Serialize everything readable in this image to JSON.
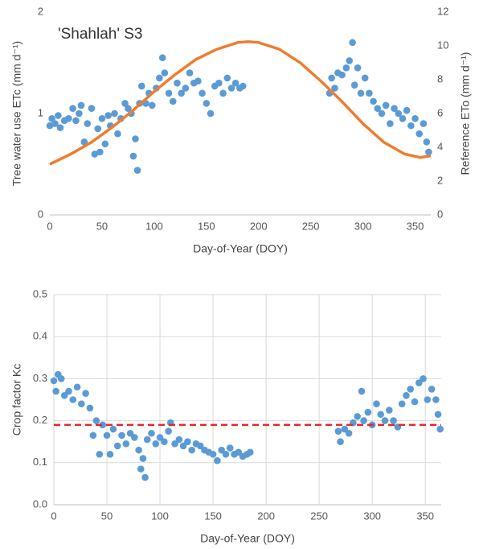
{
  "chart_data": [
    {
      "type": "scatter",
      "annotation": "'Shahlah' S3",
      "x_label": "Day-of-Year (DOY)",
      "y_label": "Tree water use ETc (mm d⁻¹)",
      "y2_label": "Reference ETo (mm d⁻¹)",
      "xlim": [
        0,
        365
      ],
      "xticks": [
        0,
        50,
        100,
        150,
        200,
        250,
        300,
        350
      ],
      "ylim": [
        0,
        2
      ],
      "yticks": [
        0,
        1,
        2
      ],
      "y2lim": [
        0,
        12
      ],
      "y2ticks": [
        0,
        2,
        4,
        6,
        8,
        10,
        12
      ],
      "grid": false,
      "series": [
        {
          "type": "scatter",
          "color": "#5b9bd5",
          "x": [
            0,
            2,
            5,
            8,
            10,
            14,
            18,
            22,
            25,
            28,
            30,
            33,
            36,
            40,
            43,
            46,
            48,
            50,
            53,
            56,
            58,
            62,
            65,
            68,
            72,
            75,
            78,
            80,
            82,
            84,
            86,
            88,
            92,
            95,
            98,
            102,
            105,
            108,
            110,
            114,
            118,
            122,
            126,
            130,
            134,
            138,
            142,
            146,
            150,
            154,
            158,
            162,
            166,
            170,
            174,
            178,
            182,
            185,
            268,
            270,
            273,
            276,
            280,
            284,
            287,
            290,
            292,
            295,
            298,
            302,
            306,
            310,
            314,
            318,
            322,
            326,
            330,
            334,
            338,
            342,
            346,
            350,
            354,
            358,
            361,
            363
          ],
          "values": [
            0.88,
            0.95,
            0.9,
            0.98,
            0.86,
            0.93,
            0.95,
            1.05,
            0.93,
            1.0,
            1.08,
            0.72,
            0.9,
            1.05,
            0.6,
            0.85,
            0.62,
            0.95,
            0.7,
            0.98,
            0.88,
            1.0,
            0.8,
            0.95,
            1.1,
            1.05,
            1.0,
            0.58,
            0.75,
            0.44,
            1.1,
            1.27,
            1.1,
            1.2,
            1.08,
            1.25,
            1.35,
            1.55,
            1.4,
            1.2,
            1.12,
            1.3,
            1.2,
            1.25,
            1.4,
            1.3,
            1.32,
            1.2,
            1.1,
            1.0,
            1.27,
            1.3,
            1.2,
            1.35,
            1.25,
            1.3,
            1.25,
            1.27,
            1.2,
            1.35,
            1.25,
            1.4,
            1.38,
            1.45,
            1.52,
            1.7,
            1.28,
            1.45,
            1.2,
            1.35,
            1.2,
            1.12,
            1.05,
            1.0,
            1.08,
            0.9,
            1.05,
            1.0,
            0.95,
            1.03,
            0.88,
            0.95,
            0.8,
            0.9,
            0.72,
            0.62
          ]
        },
        {
          "type": "line",
          "axis": "y2",
          "color": "#ed7d31",
          "x": [
            0,
            20,
            40,
            60,
            80,
            100,
            120,
            140,
            160,
            180,
            190,
            200,
            220,
            240,
            260,
            280,
            300,
            320,
            340,
            355,
            365
          ],
          "values": [
            3.0,
            3.6,
            4.3,
            5.2,
            6.2,
            7.3,
            8.3,
            9.2,
            9.8,
            10.2,
            10.25,
            10.2,
            9.8,
            9.0,
            7.9,
            6.7,
            5.4,
            4.3,
            3.6,
            3.4,
            3.5
          ]
        }
      ]
    },
    {
      "type": "scatter",
      "x_label": "Day-of-Year (DOY)",
      "y_label": "Crop factor Kc",
      "xlim": [
        0,
        365
      ],
      "xticks": [
        0,
        50,
        100,
        150,
        200,
        250,
        300,
        350
      ],
      "ylim": [
        0,
        0.5
      ],
      "yticks": [
        {
          "value": 0,
          "label": "0.0"
        },
        0.1,
        0.2,
        0.3,
        0.4,
        0.5
      ],
      "grid": true,
      "hline": {
        "value": 0.19,
        "color": "#e8262a"
      },
      "series": [
        {
          "type": "scatter",
          "color": "#5b9bd5",
          "x": [
            0,
            2,
            4,
            7,
            10,
            14,
            18,
            22,
            26,
            30,
            34,
            37,
            40,
            43,
            46,
            50,
            53,
            56,
            60,
            64,
            68,
            72,
            76,
            80,
            82,
            84,
            86,
            88,
            92,
            96,
            100,
            104,
            108,
            110,
            114,
            118,
            122,
            126,
            130,
            134,
            138,
            142,
            146,
            150,
            154,
            158,
            162,
            166,
            170,
            174,
            178,
            182,
            185,
            268,
            270,
            274,
            278,
            282,
            286,
            290,
            292,
            296,
            300,
            304,
            308,
            312,
            316,
            320,
            324,
            328,
            332,
            336,
            340,
            344,
            348,
            352,
            356,
            360,
            362,
            364
          ],
          "values": [
            0.295,
            0.27,
            0.31,
            0.3,
            0.26,
            0.27,
            0.25,
            0.28,
            0.24,
            0.265,
            0.23,
            0.165,
            0.2,
            0.12,
            0.19,
            0.165,
            0.12,
            0.18,
            0.14,
            0.165,
            0.145,
            0.17,
            0.16,
            0.13,
            0.085,
            0.11,
            0.065,
            0.155,
            0.17,
            0.145,
            0.16,
            0.15,
            0.175,
            0.195,
            0.145,
            0.155,
            0.14,
            0.15,
            0.13,
            0.145,
            0.14,
            0.13,
            0.125,
            0.12,
            0.105,
            0.13,
            0.12,
            0.135,
            0.12,
            0.125,
            0.115,
            0.12,
            0.125,
            0.175,
            0.15,
            0.18,
            0.17,
            0.195,
            0.21,
            0.27,
            0.2,
            0.22,
            0.19,
            0.24,
            0.215,
            0.2,
            0.225,
            0.2,
            0.185,
            0.24,
            0.26,
            0.275,
            0.245,
            0.29,
            0.3,
            0.25,
            0.275,
            0.25,
            0.215,
            0.18
          ]
        }
      ]
    }
  ]
}
